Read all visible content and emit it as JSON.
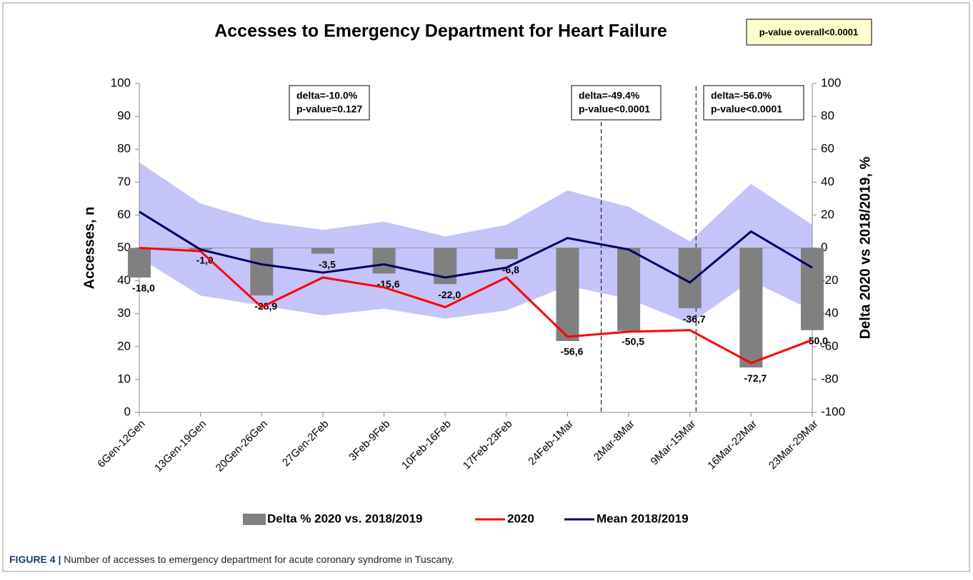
{
  "chart_data": {
    "type": "combo",
    "title": "Accesses to Emergency Department for Heart Failure",
    "categories": [
      "6Gen-12Gen",
      "13Gen-19Gen",
      "20Gen-26Gen",
      "27Gen-2Feb",
      "3Feb-9Feb",
      "10Feb-16Feb",
      "17Feb-23Feb",
      "24Feb-1Mar",
      "2Mar-8Mar",
      "9Mar-15Mar",
      "16Mar-22Mar",
      "23Mar-29Mar"
    ],
    "ylabel": "Accesses, n",
    "y2label": "Delta 2020 vs 2018/2019,  %",
    "ylim": [
      0,
      100
    ],
    "yticks": [
      0,
      10,
      20,
      30,
      40,
      50,
      60,
      70,
      80,
      90,
      100
    ],
    "y2lim": [
      -100,
      100
    ],
    "y2ticks": [
      -100,
      -80,
      -60,
      -40,
      -20,
      0,
      20,
      40,
      60,
      80,
      100
    ],
    "range": {
      "color": "#c4c4fa",
      "upper": [
        76,
        63.5,
        58,
        55.5,
        58,
        53.5,
        57,
        67.5,
        62.5,
        52,
        69.5,
        57
      ],
      "lower": [
        47,
        35.5,
        32.5,
        29.5,
        31.5,
        28.5,
        31,
        38.5,
        34.5,
        27,
        40,
        31
      ]
    },
    "series": [
      {
        "name": "Delta % 2020 vs. 2018/2019",
        "kind": "bar",
        "axis": "y2",
        "color": "#808080",
        "values": [
          -18.0,
          -1.0,
          -28.9,
          -3.5,
          -15.6,
          -22.0,
          -6.8,
          -56.6,
          -50.5,
          -36.7,
          -72.7,
          -50.0
        ],
        "value_labels": [
          "-18,0",
          "-1,0",
          "-28,9",
          "-3,5",
          "-15,6",
          "-22,0",
          "-6,8",
          "-56,6",
          "-50,5",
          "-36,7",
          "-72,7",
          "-50,0"
        ]
      },
      {
        "name": "2020",
        "kind": "line",
        "color": "#ff0000",
        "values": [
          50,
          49,
          32,
          41,
          38,
          32,
          41,
          23,
          24.5,
          25,
          15,
          22
        ]
      },
      {
        "name": "Mean 2018/2019",
        "kind": "line",
        "color": "#000066",
        "values": [
          61,
          49.5,
          45,
          42.5,
          45,
          41,
          44,
          53,
          49.5,
          39.5,
          55,
          44
        ]
      }
    ],
    "annotations": [
      {
        "lines": [
          "delta=-10.0%",
          "p-value=0.127"
        ]
      },
      {
        "lines": [
          "delta=-49.4%",
          "p-value<0.0001"
        ]
      },
      {
        "lines": [
          "delta=-56.0%",
          "p-value<0.0001"
        ]
      }
    ],
    "overall": "p-value overall<0.0001"
  },
  "caption": {
    "label": "FIGURE 4 |",
    "text": " Number of accesses to emergency department for acute coronary syndrome in Tuscany."
  }
}
